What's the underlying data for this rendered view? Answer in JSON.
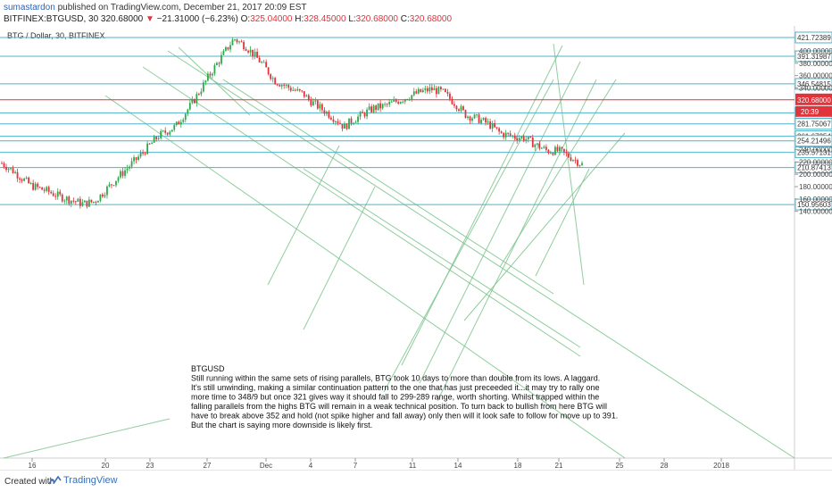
{
  "header": {
    "author": "sumastardon",
    "published_text": "published on TradingView.com, December 21, 2017 20:09 EST",
    "symbol": "BITFINEX:BTGUSD, 30",
    "last_price": "320.68000",
    "change_arrow": "▼",
    "change_text": "−21.31000 (−6.23%)",
    "ohlc_open_label": "O:",
    "ohlc_open": "325.04000",
    "ohlc_high_label": "H:",
    "ohlc_high": "328.45000",
    "ohlc_low_label": "L:",
    "ohlc_low": "320.68000",
    "ohlc_close_label": "C:",
    "ohlc_close": "320.68000"
  },
  "chart_title": "BTG / Dollar, 30, BITFINEX",
  "annotation": {
    "lines": [
      "BTGUSD",
      "Still running within the same sets of rising parallels, BTG took 10 days to more than double from its lows. A laggard.",
      "It's still unwinding, making a similar continuation pattern to the one that has just preceeded it...it may try to rally one",
      "more time to 348/9 but once 321 gives way it should fall to 299-289 range, worth shorting. Whilst trapped within the",
      "falling parallels from the highs BTG will remain in a weak technical position. To turn back to bullish from here BTG will",
      "have to break above 352 and hold (not spike higher and fall away) only then will it look safe to follow for move up to 391.",
      "But the chart is saying more downside is likely first."
    ]
  },
  "footer": {
    "created_with": "Created with",
    "brand": "TradingView"
  },
  "colors": {
    "up": "#2ea84a",
    "down": "#e0333b",
    "level": "#4fb3c9",
    "channel": "#7cc58c",
    "price_tag": "#e0333b"
  },
  "chart_data": {
    "type": "line",
    "title": "BTG / Dollar, 30, BITFINEX",
    "ylim": [
      130,
      432
    ],
    "grid": false,
    "x_ticks": [
      "16",
      "20",
      "23",
      "27",
      "Dec",
      "4",
      "7",
      "11",
      "14",
      "18",
      "21",
      "25",
      "28",
      "2018"
    ],
    "y_ticks": [
      "400.00000",
      "380.00000",
      "360.00000",
      "340.00000",
      "240.00000",
      "220.00000",
      "200.00000",
      "180.00000",
      "160.00000",
      "140.00000"
    ],
    "levels": [
      "421.72389",
      "391.31987",
      "346.54815",
      "299.53415",
      "281.75067",
      "261.67254",
      "254.21496",
      "235.57131",
      "210.87413",
      "150.95603"
    ],
    "current_price": "320.68000",
    "countdown": "20:39",
    "series": [
      {
        "x": [
          0,
          0.02,
          0.05,
          0.08,
          0.1,
          0.12,
          0.14,
          0.16,
          0.2,
          0.24,
          0.27,
          0.3,
          0.33,
          0.36,
          0.38,
          0.4,
          0.42,
          0.45,
          0.47,
          0.5,
          0.52,
          0.53,
          0.56,
          0.58,
          0.59,
          0.6,
          0.62,
          0.64,
          0.66,
          0.68,
          0.7,
          0.72,
          0.74,
          0.76,
          0.78,
          0.8,
          0.82,
          0.84,
          0.86,
          0.88,
          0.9,
          0.92,
          0.94,
          0.96,
          0.98,
          1.0
        ],
        "values": [
          218,
          205,
          182,
          172,
          164,
          158,
          152,
          156,
          195,
          232,
          262,
          278,
          318,
          364,
          392,
          420,
          408,
          378,
          352,
          338,
          330,
          320,
          300,
          286,
          276,
          285,
          296,
          307,
          311,
          318,
          326,
          333,
          338,
          333,
          316,
          296,
          290,
          281,
          266,
          262,
          259,
          248,
          238,
          238,
          228,
          216
        ]
      }
    ]
  }
}
